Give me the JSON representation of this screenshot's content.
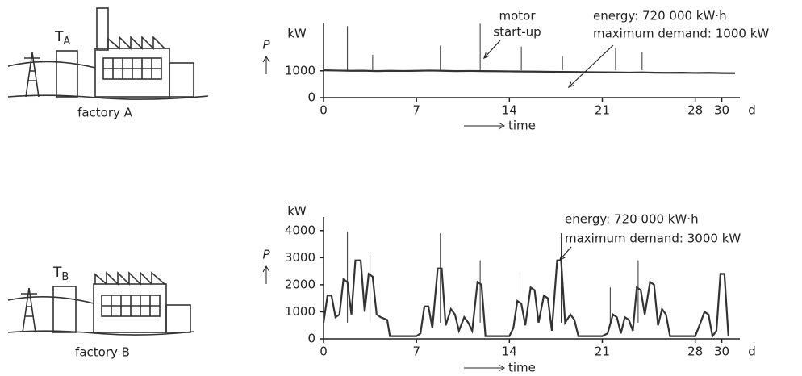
{
  "chart_data": [
    {
      "type": "line",
      "color": "#333333",
      "x": [
        0,
        1,
        2,
        3,
        4,
        5,
        6,
        7,
        8,
        9,
        10,
        11,
        12,
        13,
        14,
        15,
        16,
        17,
        18,
        19,
        20,
        21,
        22,
        23,
        24,
        25,
        26,
        27,
        28,
        29,
        30,
        31
      ],
      "values": [
        1020,
        1010,
        1000,
        1005,
        990,
        1000,
        995,
        1000,
        1010,
        1000,
        990,
        995,
        990,
        985,
        980,
        975,
        970,
        965,
        960,
        955,
        950,
        945,
        940,
        935,
        940,
        930,
        925,
        930,
        920,
        925,
        915,
        910
      ],
      "spikes": {
        "x": [
          1.8,
          3.7,
          8.8,
          11.8,
          14.9,
          18.0,
          22.0,
          24.0
        ],
        "values": [
          2670,
          1600,
          1940,
          2760,
          1900,
          1550,
          1850,
          1700
        ]
      },
      "xlim": [
        0,
        31
      ],
      "ylim": [
        0,
        2800
      ],
      "xticks": [
        0,
        7,
        14,
        21,
        28,
        30
      ],
      "yticks": [
        0,
        1000
      ],
      "y_unit": "kW",
      "y_label": "P",
      "x_label": "time",
      "x_unit": "d",
      "annotations": [
        "motor",
        "start-up",
        "energy: 720 000 kW·h",
        "maximum demand: 1000 kW"
      ]
    },
    {
      "type": "line",
      "color": "#333333",
      "x": [
        0,
        0.3,
        0.6,
        0.9,
        1.2,
        1.5,
        1.8,
        2.1,
        2.4,
        2.8,
        3.1,
        3.4,
        3.7,
        4.0,
        4.3,
        4.8,
        5.0,
        7.0,
        7.3,
        7.6,
        7.9,
        8.2,
        8.6,
        8.9,
        9.2,
        9.6,
        9.9,
        10.2,
        10.6,
        10.9,
        11.2,
        11.6,
        11.9,
        12.2,
        14.0,
        14.3,
        14.6,
        14.9,
        15.2,
        15.6,
        15.9,
        16.2,
        16.6,
        16.9,
        17.2,
        17.6,
        17.9,
        18.2,
        18.6,
        18.9,
        19.2,
        21.0,
        21.4,
        21.8,
        22.1,
        22.4,
        22.7,
        23.0,
        23.3,
        23.6,
        23.9,
        24.2,
        24.6,
        24.9,
        25.2,
        25.5,
        25.8,
        26.1,
        28.0,
        28.4,
        28.7,
        29.0,
        29.3,
        29.6,
        29.9,
        30.2,
        30.5
      ],
      "values": [
        600,
        1600,
        1600,
        800,
        900,
        2200,
        2100,
        900,
        2900,
        2900,
        1000,
        2400,
        2300,
        900,
        800,
        700,
        100,
        100,
        200,
        1200,
        1200,
        400,
        2600,
        2600,
        500,
        1100,
        900,
        300,
        800,
        600,
        300,
        2100,
        2000,
        100,
        100,
        400,
        1400,
        1300,
        500,
        1900,
        1800,
        600,
        1600,
        1500,
        300,
        2900,
        2900,
        600,
        900,
        700,
        100,
        100,
        200,
        900,
        800,
        200,
        800,
        700,
        300,
        1900,
        1800,
        900,
        2100,
        2000,
        500,
        1100,
        900,
        100,
        100,
        600,
        1000,
        900,
        100,
        300,
        2400,
        2400,
        100
      ],
      "spikes": {
        "x": [
          1.8,
          3.5,
          8.8,
          11.8,
          14.8,
          17.9,
          21.6,
          23.7
        ],
        "values": [
          3950,
          3200,
          3900,
          2900,
          2500,
          3900,
          1900,
          2900
        ]
      },
      "xlim": [
        0,
        31
      ],
      "ylim": [
        0,
        4500
      ],
      "xticks": [
        0,
        7,
        14,
        21,
        28,
        30
      ],
      "yticks": [
        0,
        1000,
        2000,
        3000,
        4000
      ],
      "y_unit": "kW",
      "y_label": "P",
      "x_label": "time",
      "x_unit": "d",
      "annotations": [
        "energy: 720 000 kW·h",
        "maximum demand: 3000 kW"
      ]
    }
  ],
  "illustrations": [
    {
      "caption": "factory A",
      "transformer": "T",
      "transformer_sub": "A"
    },
    {
      "caption": "factory B",
      "transformer": "T",
      "transformer_sub": "B"
    }
  ]
}
